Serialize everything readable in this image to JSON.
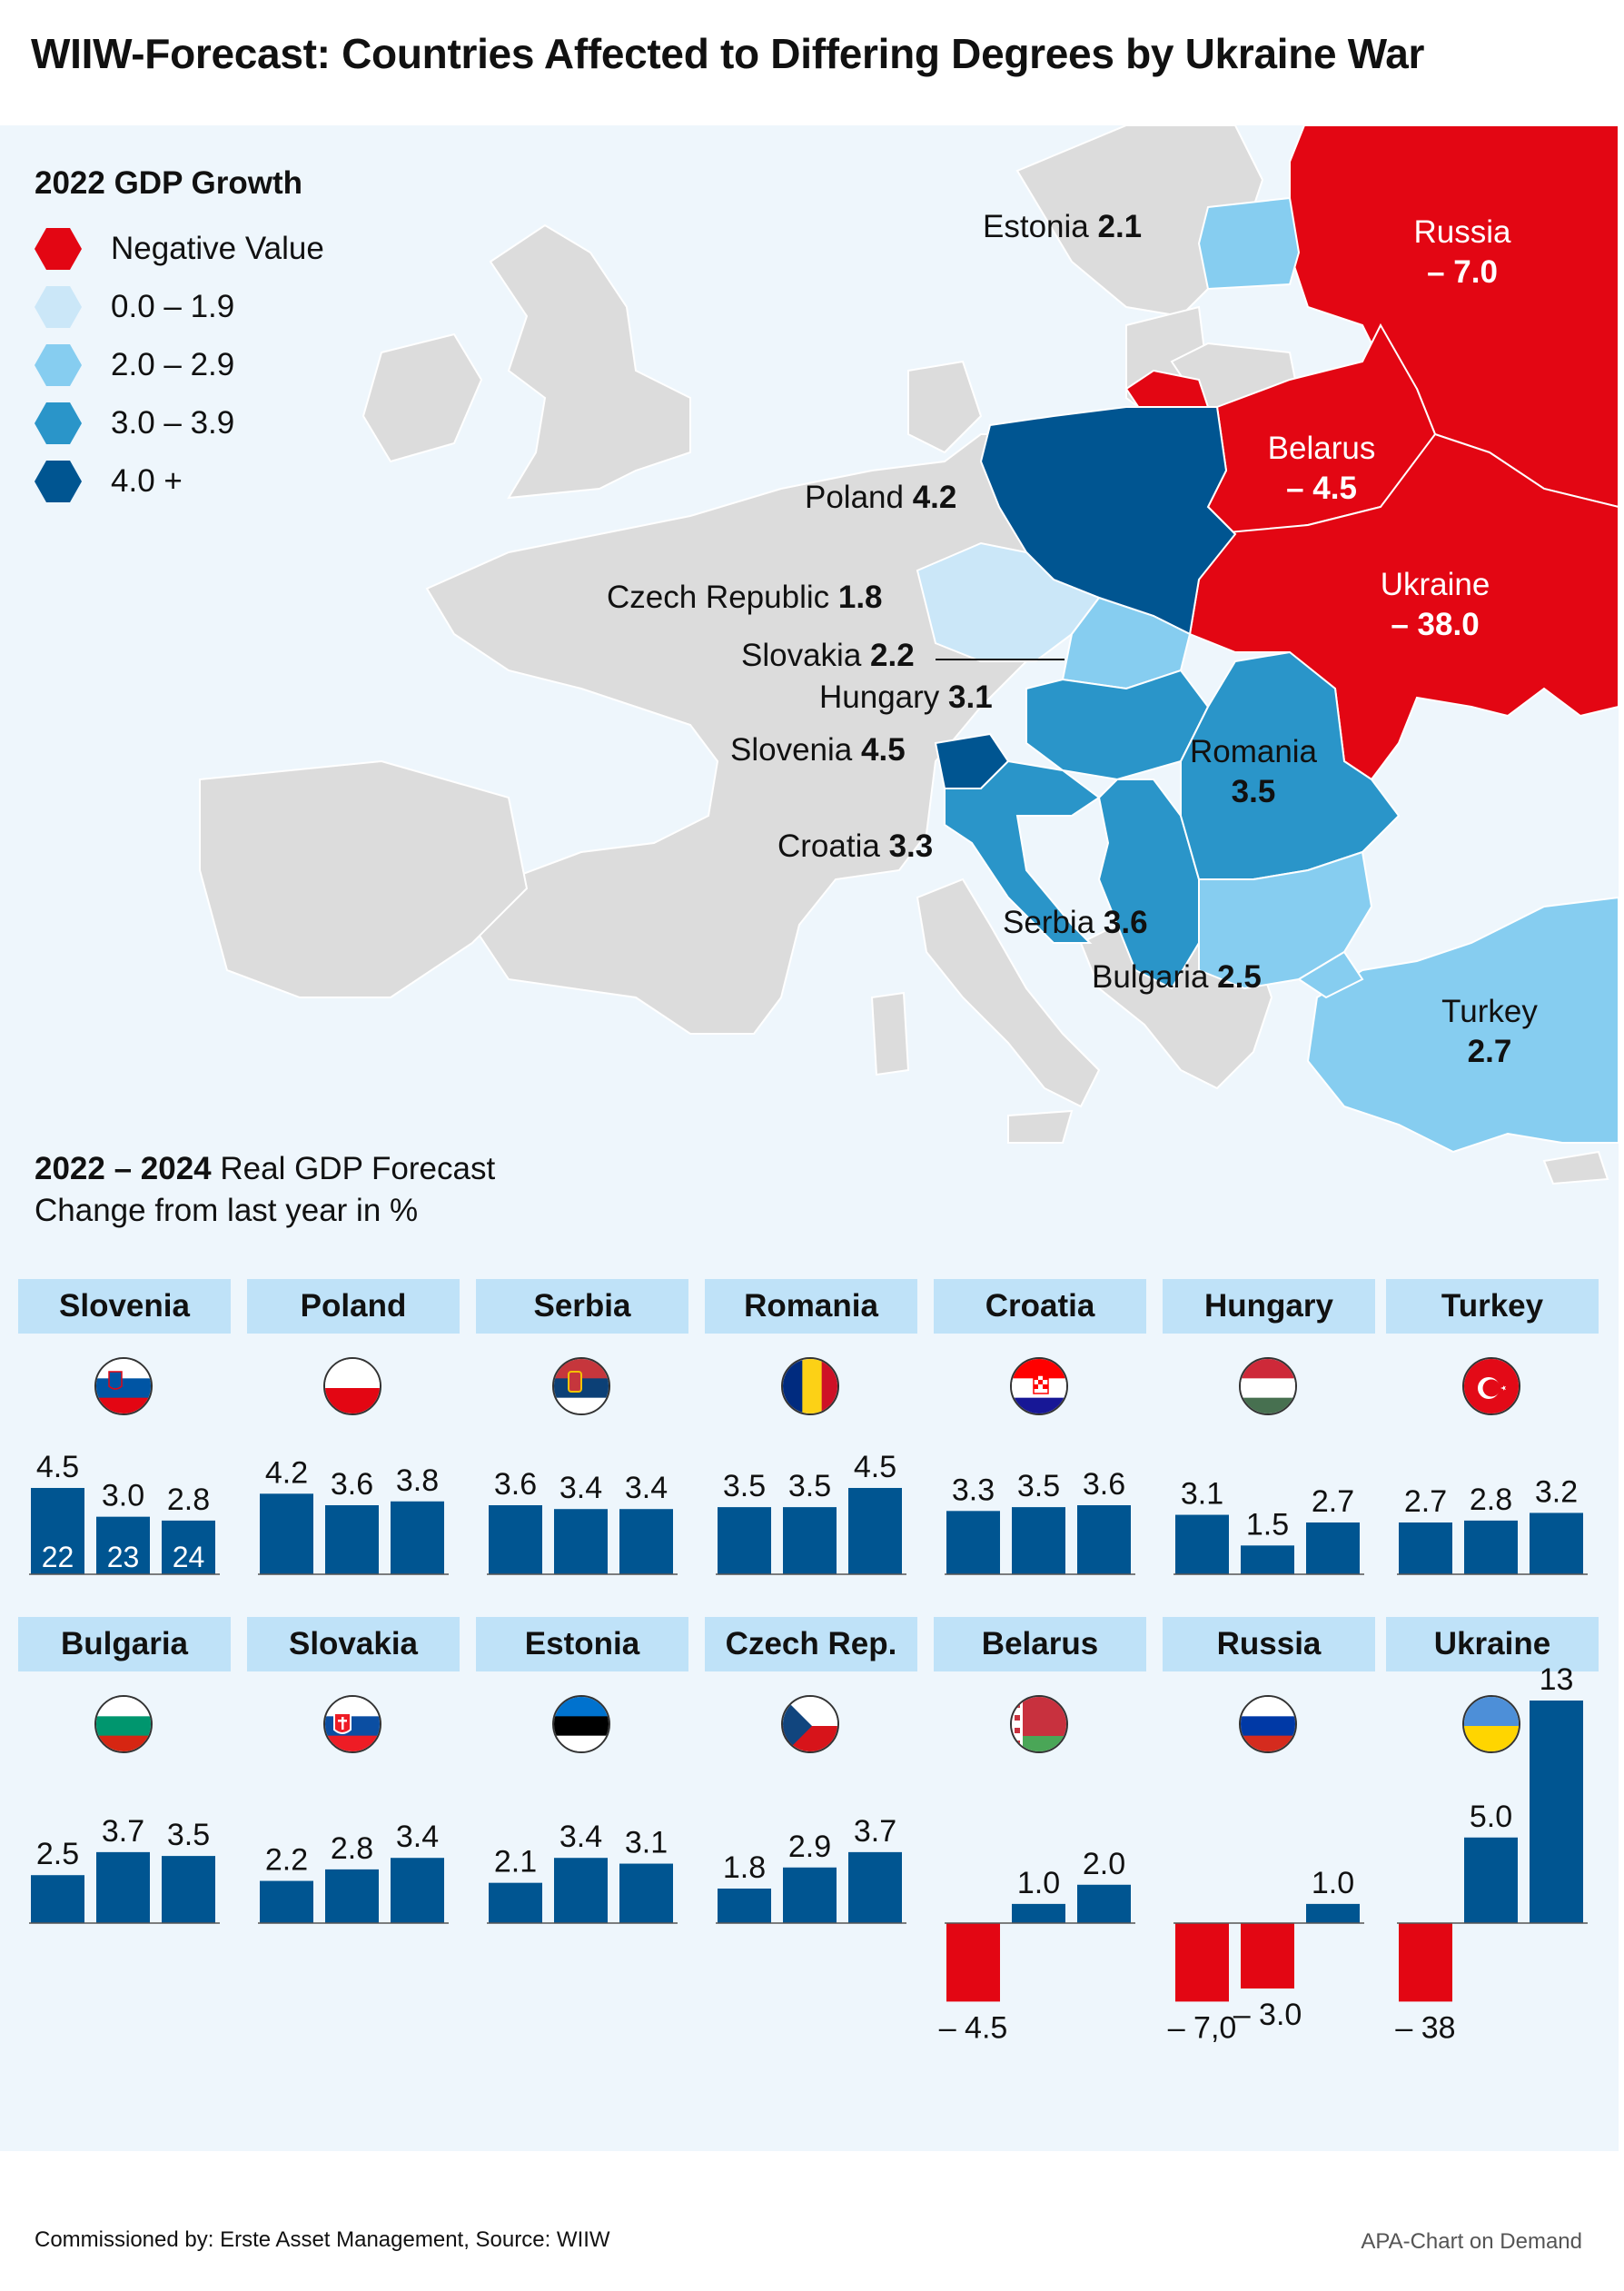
{
  "title": "WIIW-Forecast: Countries Affected to Differing Degrees by Ukraine War",
  "legend": {
    "title": "2022 GDP Growth",
    "items": [
      {
        "label": "Negative Value",
        "color": "#e30613"
      },
      {
        "label": "0.0 – 1.9",
        "color": "#cbe7f8"
      },
      {
        "label": "2.0 – 2.9",
        "color": "#86cdf0"
      },
      {
        "label": "3.0 – 3.9",
        "color": "#2a95c9"
      },
      {
        "label": "4.0 +",
        "color": "#005591"
      }
    ]
  },
  "map": {
    "labels": {
      "estonia": {
        "name": "Estonia",
        "value": "2.1"
      },
      "russia": {
        "name": "Russia",
        "value": "– 7.0"
      },
      "belarus": {
        "name": "Belarus",
        "value": "– 4.5"
      },
      "poland": {
        "name": "Poland",
        "value": "4.2"
      },
      "ukraine": {
        "name": "Ukraine",
        "value": "– 38.0"
      },
      "czech": {
        "name": "Czech Republic",
        "value": "1.8"
      },
      "slovakia": {
        "name": "Slovakia",
        "value": "2.2"
      },
      "hungary": {
        "name": "Hungary",
        "value": "3.1"
      },
      "slovenia": {
        "name": "Slovenia",
        "value": "4.5"
      },
      "romania": {
        "name": "Romania",
        "value": "3.5"
      },
      "croatia": {
        "name": "Croatia",
        "value": "3.3"
      },
      "serbia": {
        "name": "Serbia",
        "value": "3.6"
      },
      "bulgaria": {
        "name": "Bulgaria",
        "value": "2.5"
      },
      "turkey": {
        "name": "Turkey",
        "value": "2.7"
      }
    }
  },
  "forecast": {
    "heading_bold": "2022 – 2024",
    "heading_rest": " Real GDP Forecast",
    "subheading": "Change from last year in %"
  },
  "chart_data": {
    "type": "bar",
    "years": [
      "22",
      "23",
      "24"
    ],
    "countries": [
      {
        "name": "Slovenia",
        "flag": "slovenia-flag-icon",
        "values": [
          4.5,
          3.0,
          2.8
        ],
        "labels": [
          "4.5",
          "3.0",
          "2.8"
        ]
      },
      {
        "name": "Poland",
        "flag": "poland-flag-icon",
        "values": [
          4.2,
          3.6,
          3.8
        ],
        "labels": [
          "4.2",
          "3.6",
          "3.8"
        ]
      },
      {
        "name": "Serbia",
        "flag": "serbia-flag-icon",
        "values": [
          3.6,
          3.4,
          3.4
        ],
        "labels": [
          "3.6",
          "3.4",
          "3.4"
        ]
      },
      {
        "name": "Romania",
        "flag": "romania-flag-icon",
        "values": [
          3.5,
          3.5,
          4.5
        ],
        "labels": [
          "3.5",
          "3.5",
          "4.5"
        ]
      },
      {
        "name": "Croatia",
        "flag": "croatia-flag-icon",
        "values": [
          3.3,
          3.5,
          3.6
        ],
        "labels": [
          "3.3",
          "3.5",
          "3.6"
        ]
      },
      {
        "name": "Hungary",
        "flag": "hungary-flag-icon",
        "values": [
          3.1,
          1.5,
          2.7
        ],
        "labels": [
          "3.1",
          "1.5",
          "2.7"
        ]
      },
      {
        "name": "Turkey",
        "flag": "turkey-flag-icon",
        "values": [
          2.7,
          2.8,
          3.2
        ],
        "labels": [
          "2.7",
          "2.8",
          "3.2"
        ]
      },
      {
        "name": "Bulgaria",
        "flag": "bulgaria-flag-icon",
        "values": [
          2.5,
          3.7,
          3.5
        ],
        "labels": [
          "2.5",
          "3.7",
          "3.5"
        ]
      },
      {
        "name": "Slovakia",
        "flag": "slovakia-flag-icon",
        "values": [
          2.2,
          2.8,
          3.4
        ],
        "labels": [
          "2.2",
          "2.8",
          "3.4"
        ]
      },
      {
        "name": "Estonia",
        "flag": "estonia-flag-icon",
        "values": [
          2.1,
          3.4,
          3.1
        ],
        "labels": [
          "2.1",
          "3.4",
          "3.1"
        ]
      },
      {
        "name": "Czech Rep.",
        "flag": "czech-flag-icon",
        "values": [
          1.8,
          2.9,
          3.7
        ],
        "labels": [
          "1.8",
          "2.9",
          "3.7"
        ]
      },
      {
        "name": "Belarus",
        "flag": "belarus-flag-icon",
        "values": [
          -4.5,
          1.0,
          2.0
        ],
        "labels": [
          "– 4.5",
          "1.0",
          "2.0"
        ]
      },
      {
        "name": "Russia",
        "flag": "russia-flag-icon",
        "values": [
          -7.0,
          -3.0,
          1.0
        ],
        "labels": [
          "– 7,0",
          "– 3.0",
          "1.0"
        ]
      },
      {
        "name": "Ukraine",
        "flag": "ukraine-flag-icon",
        "values": [
          -38,
          5.0,
          13
        ],
        "labels": [
          "– 38",
          "5.0",
          "13"
        ]
      }
    ],
    "colors": {
      "positive": "#005591",
      "negative": "#e30613"
    }
  },
  "footer": {
    "left": "Commissioned by: Erste Asset Management, Source: WIIW",
    "right": "APA-Chart on Demand"
  }
}
